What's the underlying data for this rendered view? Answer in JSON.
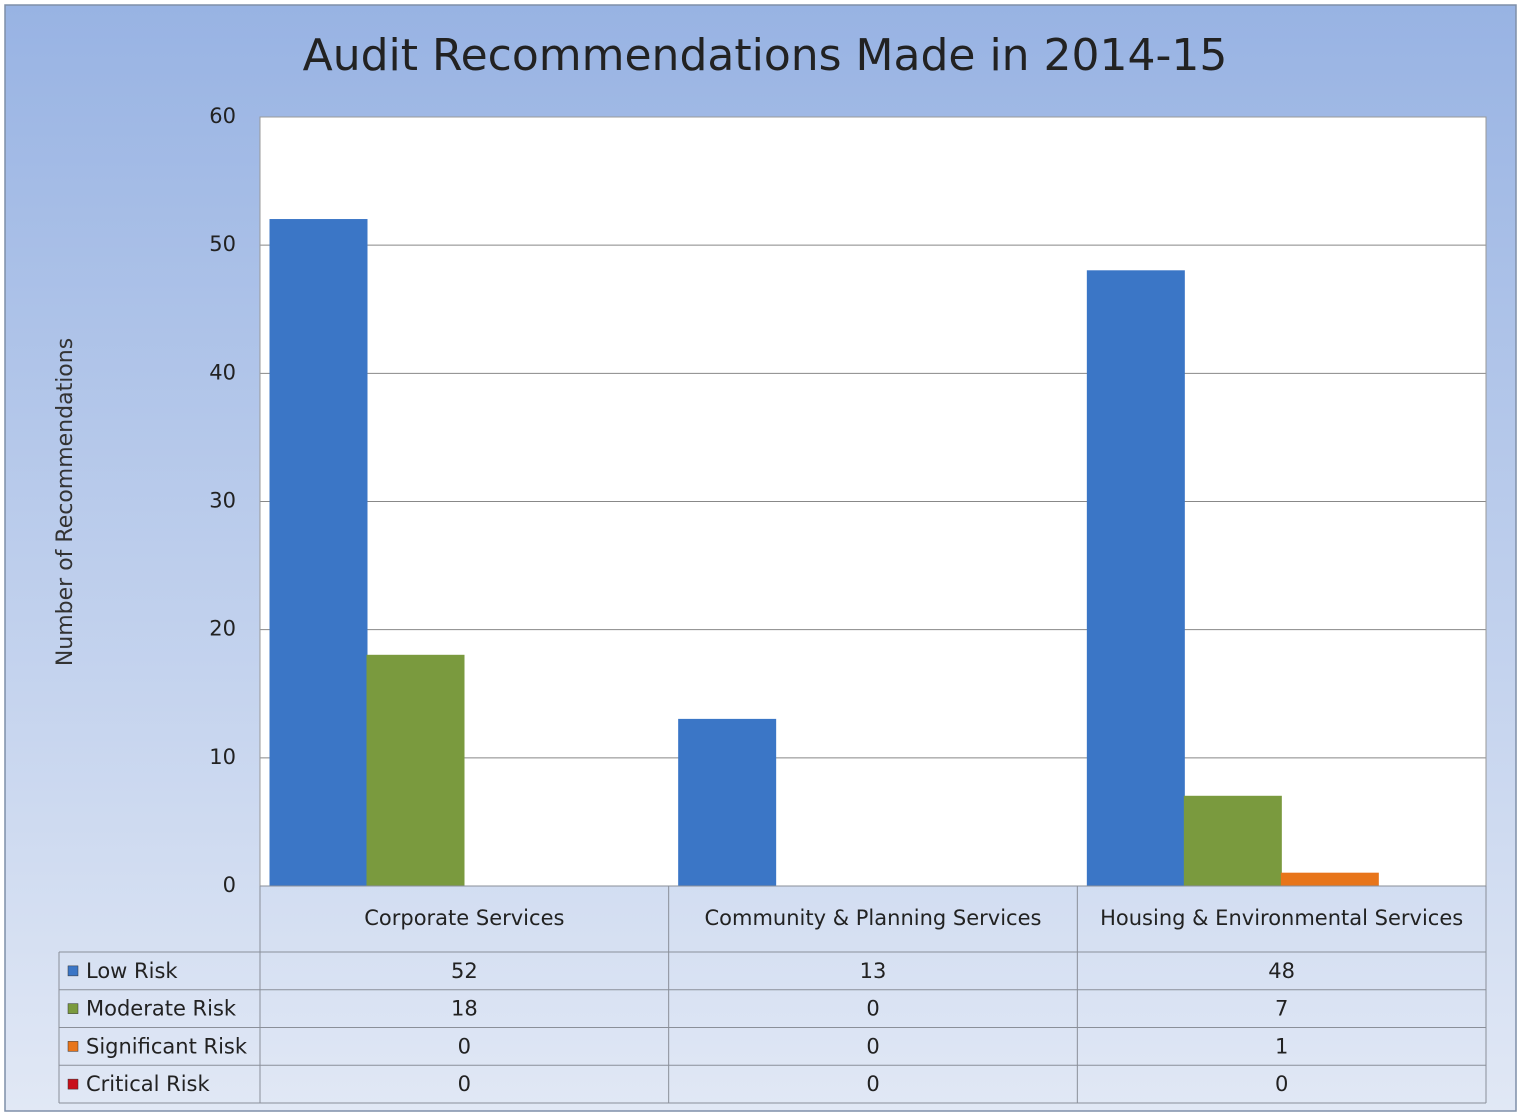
{
  "chart_data": {
    "type": "bar",
    "title": "Audit Recommendations Made in 2014-15",
    "y_label": "Number of Recommendations",
    "categories": [
      "Corporate Services",
      "Community & Planning Services",
      "Housing & Environmental Services"
    ],
    "series": [
      {
        "name": "Low Risk",
        "color": "#3b76c6",
        "values": [
          52,
          13,
          48
        ]
      },
      {
        "name": "Moderate Risk",
        "color": "#7a9a3e",
        "values": [
          18,
          0,
          7
        ]
      },
      {
        "name": "Significant Risk",
        "color": "#e8751a",
        "values": [
          0,
          0,
          1
        ]
      },
      {
        "name": "Critical Risk",
        "color": "#c8101a",
        "values": [
          0,
          0,
          0
        ]
      }
    ],
    "ylim": [
      0,
      60
    ],
    "yticks": [
      0,
      10,
      20,
      30,
      40,
      50,
      60
    ],
    "grid": true,
    "data_table": true
  }
}
